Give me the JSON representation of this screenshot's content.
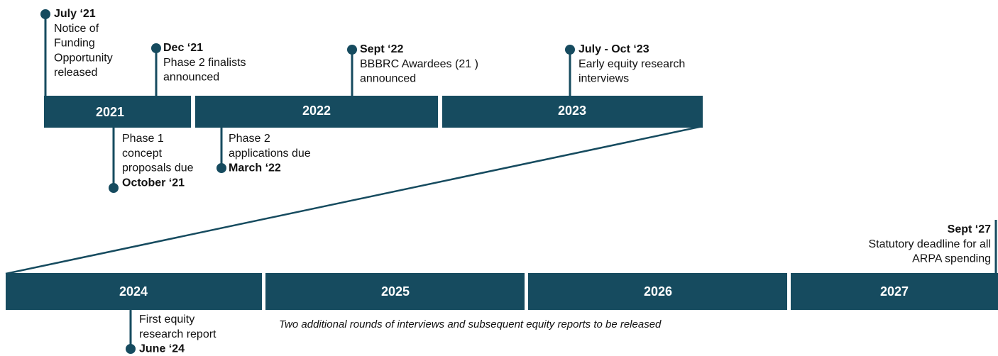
{
  "timeline": {
    "rows": [
      {
        "years": [
          "2021",
          "2022",
          "2023"
        ]
      },
      {
        "years": [
          "2024",
          "2025",
          "2026",
          "2027"
        ]
      }
    ],
    "events": [
      {
        "date": "July ‘21",
        "lines": [
          "Notice of",
          "Funding",
          "Opportunity",
          "released"
        ]
      },
      {
        "date": "Dec ‘21",
        "lines": [
          "Phase 2 finalists",
          "announced"
        ]
      },
      {
        "date": "Sept ‘22",
        "lines": [
          "BBBRC Awardees (21 )",
          "announced"
        ]
      },
      {
        "date": "July - Oct ‘23",
        "lines": [
          "Early equity research",
          "interviews"
        ]
      },
      {
        "date": "October ‘21",
        "lines": [
          "Phase 1",
          "concept",
          "proposals due"
        ]
      },
      {
        "date": "March ‘22",
        "lines": [
          "Phase 2",
          "applications due"
        ]
      },
      {
        "date": "Sept ‘27",
        "lines": [
          "Statutory deadline for all",
          "ARPA spending"
        ]
      },
      {
        "date": "June ‘24",
        "lines": [
          "First equity",
          "research report"
        ]
      }
    ],
    "note": "Two additional rounds of interviews and subsequent equity reports to be released"
  }
}
